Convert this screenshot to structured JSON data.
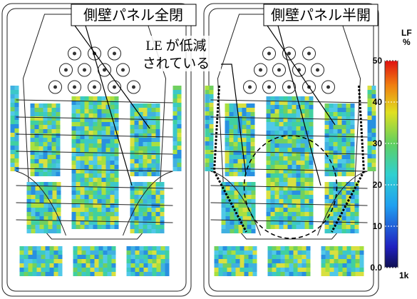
{
  "panels": [
    {
      "label": "側壁パネル全閉"
    },
    {
      "label": "側壁パネル半開"
    }
  ],
  "annotation": {
    "line1": "LE が低減",
    "line2": "されている"
  },
  "colorbar": {
    "title": "LF",
    "unit": "%",
    "band": "1k",
    "ticks": [
      {
        "value": 0,
        "label": "0.0"
      },
      10,
      20,
      30,
      40,
      50
    ]
  }
}
